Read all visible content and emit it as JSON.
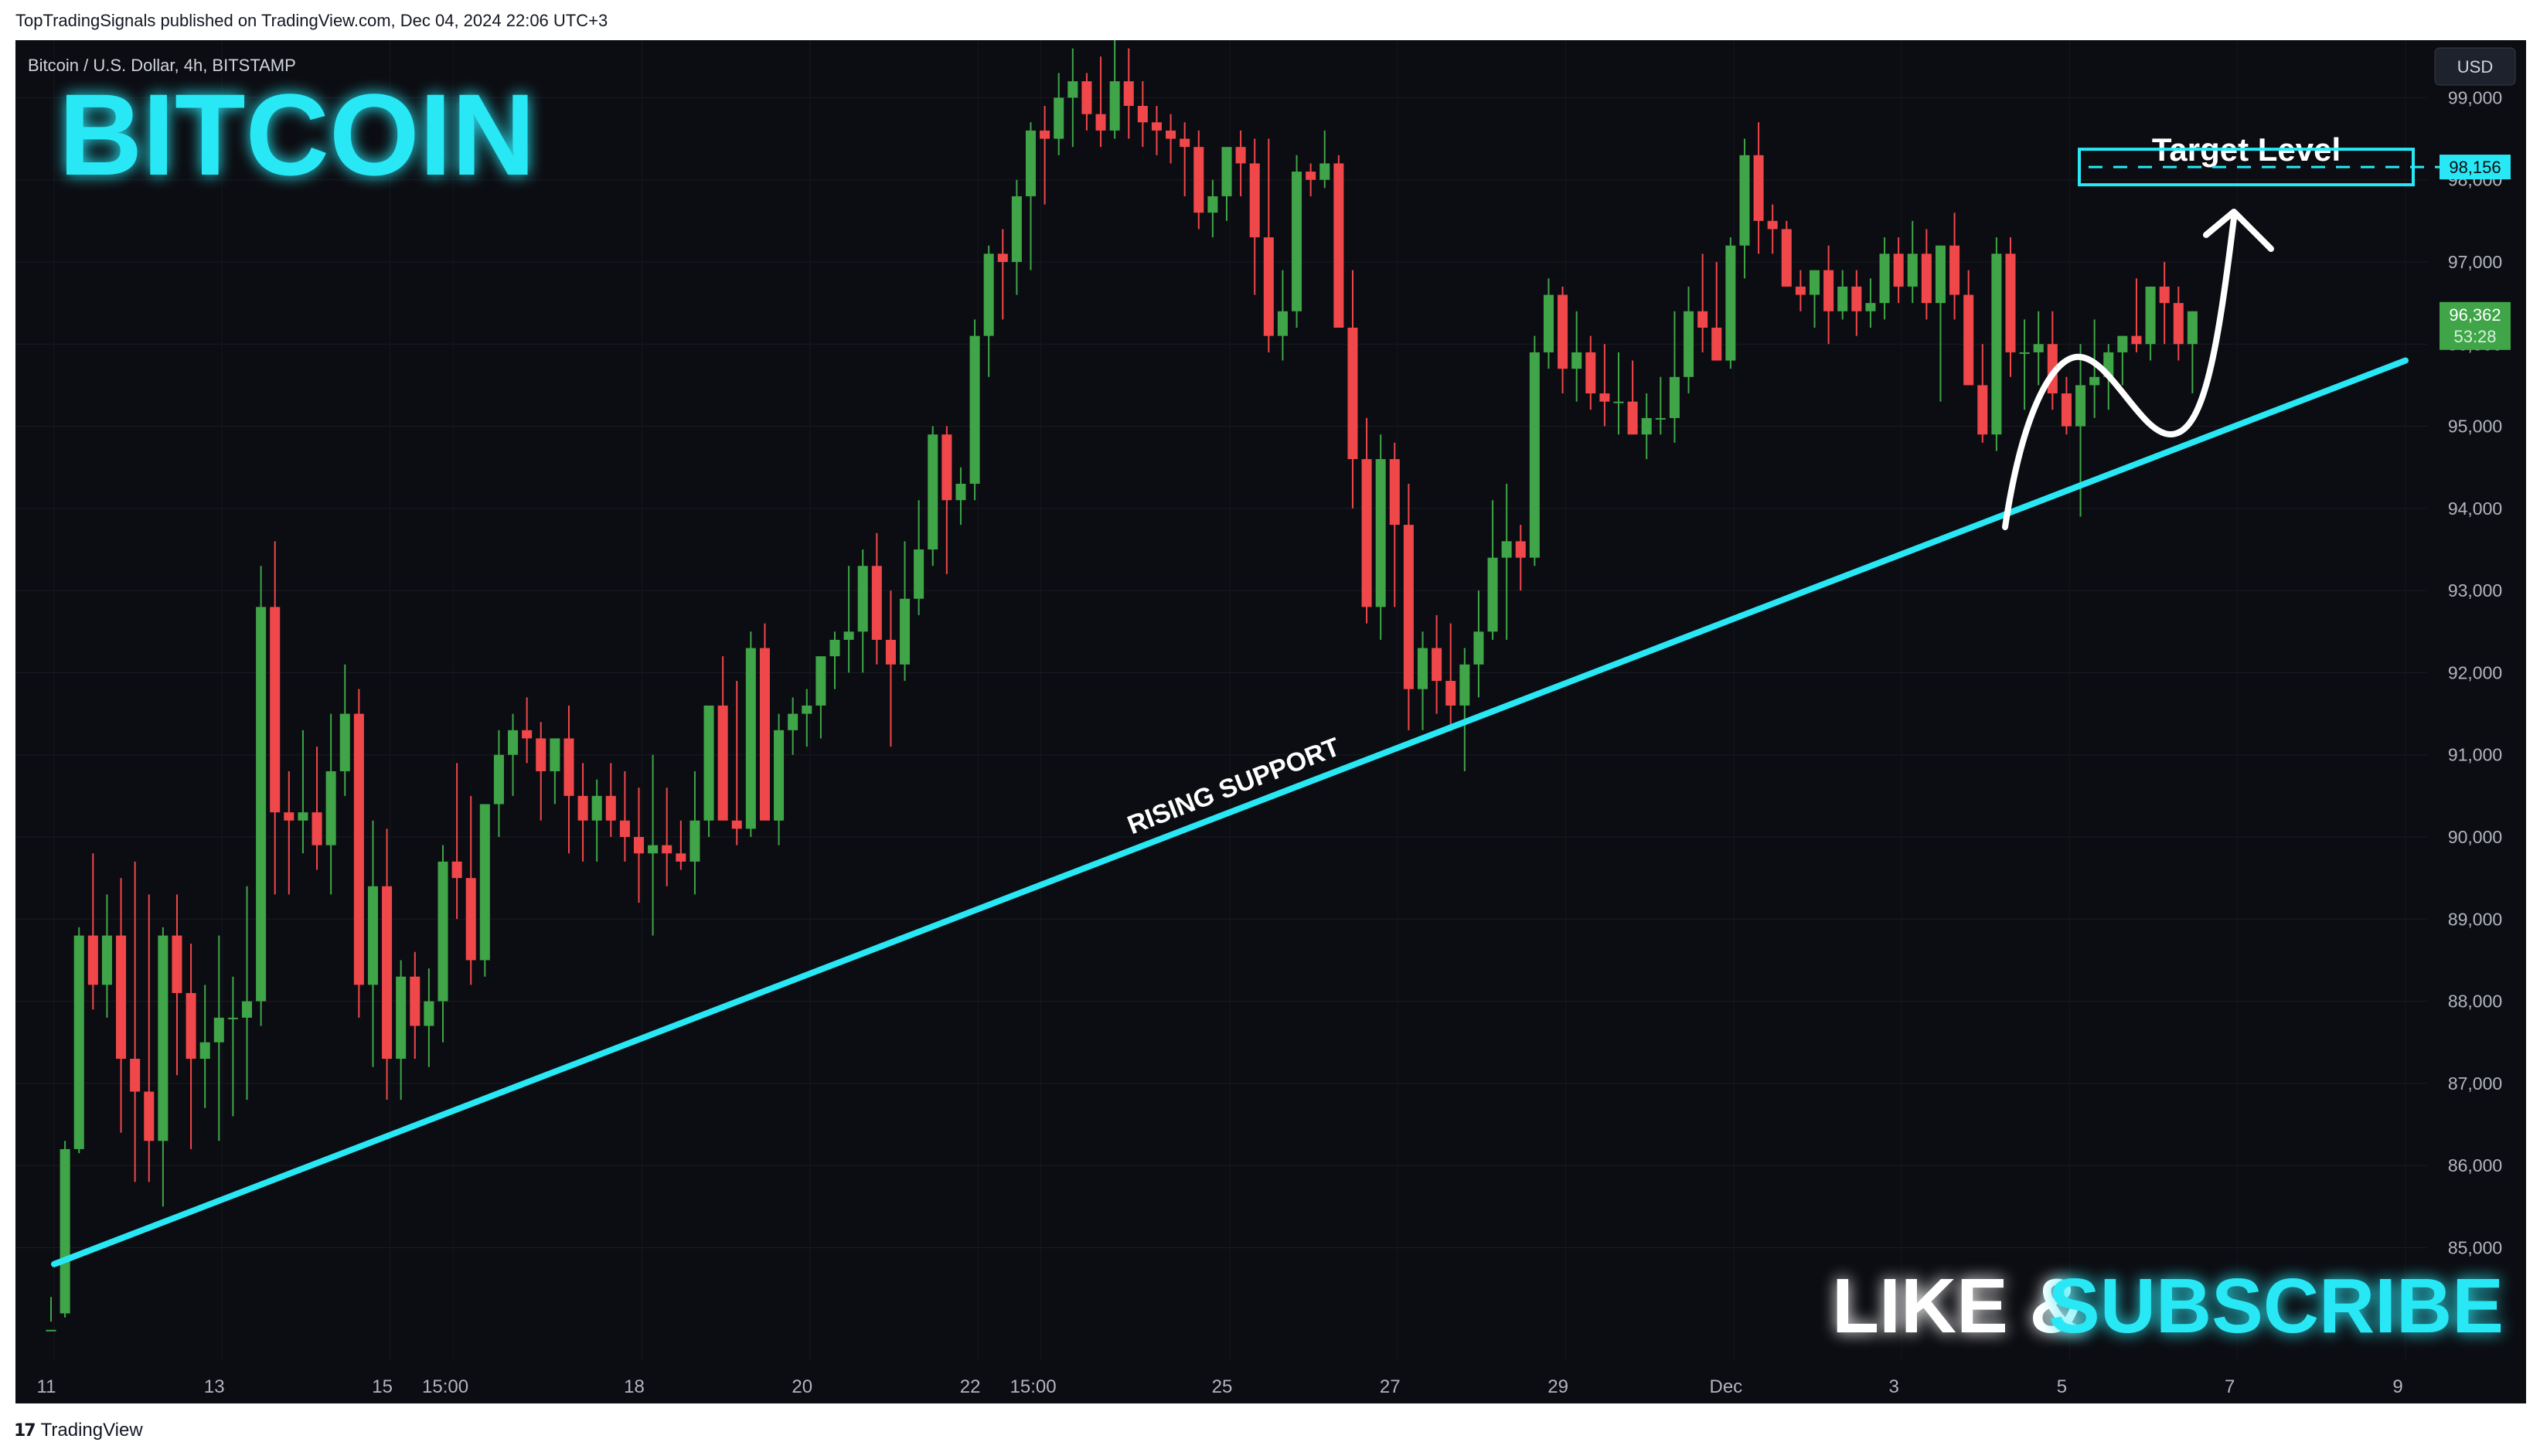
{
  "header": {
    "published": "TopTradingSignals published on TradingView.com, Dec 04, 2024 22:06 UTC+3"
  },
  "footer": {
    "brand": "TradingView",
    "logo_glyph": "17"
  },
  "symbol": {
    "label": "Bitcoin / U.S. Dollar, 4h, BITSTAMP",
    "currency": "USD"
  },
  "overlay": {
    "title": "BITCOIN",
    "like": "LIKE &",
    "subscribe": "SUBSCRIBE",
    "support_label": "RISING SUPPORT",
    "target_label": "Target Level"
  },
  "price_tags": {
    "target": "98,156",
    "last_price": "96,362",
    "countdown": "53:28"
  },
  "colors": {
    "up": "#3fa548",
    "down": "#f0474a",
    "cyan": "#29e8f5",
    "background": "#0c0d12",
    "text": "#b2b5be",
    "last_price_bg": "#3fa548"
  },
  "chart_data": {
    "type": "candlestick",
    "title": "Bitcoin / U.S. Dollar, 4h, BITSTAMP",
    "y_axis": {
      "ticks": [
        "85,000",
        "86,000",
        "87,000",
        "88,000",
        "89,000",
        "90,000",
        "91,000",
        "92,000",
        "93,000",
        "94,000",
        "95,000",
        "96,000",
        "97,000",
        "98,000",
        "99,000"
      ],
      "range": [
        83800,
        99700
      ]
    },
    "x_axis": {
      "ticks": [
        "11",
        "13",
        "15",
        "15:00",
        "18",
        "20",
        "22",
        "15:00",
        "25",
        "27",
        "29",
        "Dec",
        "3",
        "5",
        "7",
        "9"
      ],
      "range": [
        "Nov 11",
        "Dec 9"
      ]
    },
    "candles_ohlc_by_4h_bar_from_nov11": [
      [
        84000,
        84400,
        84100,
        84000
      ],
      [
        84200,
        86300,
        84150,
        86200
      ],
      [
        86200,
        88900,
        86150,
        88800
      ],
      [
        88800,
        89800,
        87900,
        88200
      ],
      [
        88200,
        89300,
        87800,
        88800
      ],
      [
        88800,
        89500,
        86400,
        87300
      ],
      [
        87300,
        89700,
        85800,
        86900
      ],
      [
        86900,
        89300,
        85800,
        86300
      ],
      [
        86300,
        88900,
        85500,
        88800
      ],
      [
        88800,
        89300,
        87100,
        88100
      ],
      [
        88100,
        88700,
        86200,
        87300
      ],
      [
        87300,
        88200,
        86700,
        87500
      ],
      [
        87500,
        88800,
        86300,
        87800
      ],
      [
        87800,
        88300,
        86600,
        87800
      ],
      [
        87800,
        89400,
        86800,
        88000
      ],
      [
        88000,
        93300,
        87700,
        92800
      ],
      [
        92800,
        93600,
        89300,
        90300
      ],
      [
        90300,
        90800,
        89300,
        90200
      ],
      [
        90200,
        91300,
        89800,
        90300
      ],
      [
        90300,
        91100,
        89600,
        89900
      ],
      [
        89900,
        91500,
        89300,
        90800
      ],
      [
        90800,
        92100,
        90500,
        91500
      ],
      [
        91500,
        91800,
        87800,
        88200
      ],
      [
        88200,
        90200,
        87200,
        89400
      ],
      [
        89400,
        90100,
        86800,
        87300
      ],
      [
        87300,
        88500,
        86800,
        88300
      ],
      [
        88300,
        88600,
        87300,
        87700
      ],
      [
        87700,
        88400,
        87200,
        88000
      ],
      [
        88000,
        89900,
        87500,
        89700
      ],
      [
        89700,
        90900,
        89000,
        89500
      ],
      [
        89500,
        90500,
        88200,
        88500
      ],
      [
        88500,
        90400,
        88300,
        90400
      ],
      [
        90400,
        91300,
        90000,
        91000
      ],
      [
        91000,
        91500,
        90500,
        91300
      ],
      [
        91300,
        91700,
        90900,
        91200
      ],
      [
        91200,
        91400,
        90200,
        90800
      ],
      [
        90800,
        91100,
        90400,
        91200
      ],
      [
        91200,
        91600,
        89800,
        90500
      ],
      [
        90500,
        90900,
        89700,
        90200
      ],
      [
        90200,
        90700,
        89700,
        90500
      ],
      [
        90500,
        90900,
        90000,
        90200
      ],
      [
        90200,
        90800,
        89700,
        90000
      ],
      [
        90000,
        90600,
        89200,
        89800
      ],
      [
        89800,
        91000,
        88800,
        89900
      ],
      [
        89900,
        90600,
        89400,
        89800
      ],
      [
        89800,
        90200,
        89600,
        89700
      ],
      [
        89700,
        90800,
        89300,
        90200
      ],
      [
        90200,
        91600,
        90000,
        91600
      ],
      [
        91600,
        92200,
        90400,
        90200
      ],
      [
        90200,
        91900,
        89900,
        90100
      ],
      [
        90100,
        92500,
        90000,
        92300
      ],
      [
        92300,
        92600,
        91400,
        90200
      ],
      [
        90200,
        91500,
        89900,
        91300
      ],
      [
        91300,
        91700,
        91000,
        91500
      ],
      [
        91500,
        91800,
        91100,
        91600
      ],
      [
        91600,
        92100,
        91200,
        92200
      ],
      [
        92200,
        92500,
        91800,
        92400
      ],
      [
        92400,
        93300,
        92000,
        92500
      ],
      [
        92500,
        93500,
        92000,
        93300
      ],
      [
        93300,
        93700,
        92100,
        92400
      ],
      [
        92400,
        93000,
        91100,
        92100
      ],
      [
        92100,
        93600,
        91900,
        92900
      ],
      [
        92900,
        94100,
        92700,
        93500
      ],
      [
        93500,
        95000,
        93300,
        94900
      ],
      [
        94900,
        95000,
        93200,
        94100
      ],
      [
        94100,
        94500,
        93800,
        94300
      ],
      [
        94300,
        96300,
        94100,
        96100
      ],
      [
        96100,
        97200,
        95600,
        97100
      ],
      [
        97100,
        97400,
        96300,
        97000
      ],
      [
        97000,
        98000,
        96600,
        97800
      ],
      [
        97800,
        98700,
        96900,
        98600
      ],
      [
        98600,
        98900,
        97700,
        98500
      ],
      [
        98500,
        99300,
        98300,
        99000
      ],
      [
        99000,
        99600,
        98400,
        99200
      ],
      [
        99200,
        99300,
        98600,
        98800
      ],
      [
        98800,
        99500,
        98400,
        98600
      ],
      [
        98600,
        99900,
        98500,
        99200
      ],
      [
        99200,
        99600,
        98500,
        98900
      ],
      [
        98900,
        99200,
        98400,
        98700
      ],
      [
        98700,
        98900,
        98300,
        98600
      ],
      [
        98600,
        98800,
        98200,
        98500
      ],
      [
        98500,
        98700,
        97800,
        98400
      ],
      [
        98400,
        98600,
        97400,
        97600
      ],
      [
        97600,
        98000,
        97300,
        97800
      ],
      [
        97800,
        98300,
        97500,
        98400
      ],
      [
        98400,
        98600,
        97800,
        98200
      ],
      [
        98200,
        98500,
        96600,
        97300
      ],
      [
        97300,
        98500,
        95900,
        96100
      ],
      [
        96100,
        96900,
        95800,
        96400
      ],
      [
        96400,
        98300,
        96200,
        98100
      ],
      [
        98100,
        98200,
        97800,
        98000
      ],
      [
        98000,
        98600,
        97900,
        98200
      ],
      [
        98200,
        98300,
        96400,
        96200
      ],
      [
        96200,
        96900,
        94000,
        94600
      ],
      [
        94600,
        95100,
        92600,
        92800
      ],
      [
        92800,
        94900,
        92400,
        94600
      ],
      [
        94600,
        94800,
        92800,
        93800
      ],
      [
        93800,
        94300,
        91300,
        91800
      ],
      [
        91800,
        92500,
        91300,
        92300
      ],
      [
        92300,
        92700,
        91500,
        91900
      ],
      [
        91900,
        92600,
        91300,
        91600
      ],
      [
        91600,
        92300,
        90800,
        92100
      ],
      [
        92100,
        93000,
        91700,
        92500
      ],
      [
        92500,
        94100,
        92400,
        93400
      ],
      [
        93400,
        94300,
        92400,
        93600
      ],
      [
        93600,
        93800,
        93000,
        93400
      ],
      [
        93400,
        96100,
        93300,
        95900
      ],
      [
        95900,
        96800,
        95700,
        96600
      ],
      [
        96600,
        96700,
        95400,
        95700
      ],
      [
        95700,
        96400,
        95300,
        95900
      ],
      [
        95900,
        96100,
        95200,
        95400
      ],
      [
        95400,
        96000,
        95000,
        95300
      ],
      [
        95300,
        95900,
        94900,
        95300
      ],
      [
        95300,
        95800,
        94900,
        94900
      ],
      [
        94900,
        95400,
        94600,
        95100
      ],
      [
        95100,
        95600,
        94900,
        95100
      ],
      [
        95100,
        96400,
        94800,
        95600
      ],
      [
        95600,
        96700,
        95400,
        96400
      ],
      [
        96400,
        97100,
        95900,
        96200
      ],
      [
        96200,
        97000,
        95900,
        95800
      ],
      [
        95800,
        97300,
        95700,
        97200
      ],
      [
        97200,
        98500,
        96800,
        98300
      ],
      [
        98300,
        98700,
        97100,
        97500
      ],
      [
        97500,
        97700,
        97100,
        97400
      ],
      [
        97400,
        97500,
        96700,
        96700
      ],
      [
        96700,
        96900,
        96400,
        96600
      ],
      [
        96600,
        96900,
        96200,
        96900
      ],
      [
        96900,
        97200,
        96000,
        96400
      ],
      [
        96400,
        96900,
        96300,
        96700
      ],
      [
        96700,
        96900,
        96100,
        96400
      ],
      [
        96400,
        96800,
        96200,
        96500
      ],
      [
        96500,
        97300,
        96300,
        97100
      ],
      [
        97100,
        97300,
        96500,
        96700
      ],
      [
        96700,
        97500,
        96500,
        97100
      ],
      [
        97100,
        97400,
        96300,
        96500
      ],
      [
        96500,
        97200,
        95300,
        97200
      ],
      [
        97200,
        97600,
        96300,
        96600
      ],
      [
        96600,
        96900,
        95500,
        95500
      ],
      [
        95500,
        96000,
        94800,
        94900
      ],
      [
        94900,
        97300,
        94700,
        97100
      ],
      [
        97100,
        97300,
        95600,
        95900
      ],
      [
        95900,
        96300,
        95200,
        95900
      ],
      [
        95900,
        96400,
        95500,
        96000
      ],
      [
        96000,
        96400,
        95200,
        95400
      ],
      [
        95400,
        95600,
        94900,
        95000
      ],
      [
        95000,
        96000,
        93900,
        95500
      ],
      [
        95500,
        96300,
        95100,
        95600
      ],
      [
        95600,
        96000,
        95200,
        95900
      ],
      [
        95900,
        96100,
        95500,
        96100
      ],
      [
        96100,
        96800,
        95900,
        96000
      ],
      [
        96000,
        96700,
        95800,
        96700
      ],
      [
        96700,
        97000,
        96000,
        96500
      ],
      [
        96500,
        96700,
        95800,
        96000
      ],
      [
        96000,
        96400,
        95400,
        96400
      ]
    ],
    "annotations": {
      "rising_support": {
        "from": [
          "Nov 11",
          84800
        ],
        "to": [
          "Dec 9",
          95800
        ],
        "label": "RISING SUPPORT"
      },
      "target_level": 98156,
      "last_price": 96362
    }
  }
}
